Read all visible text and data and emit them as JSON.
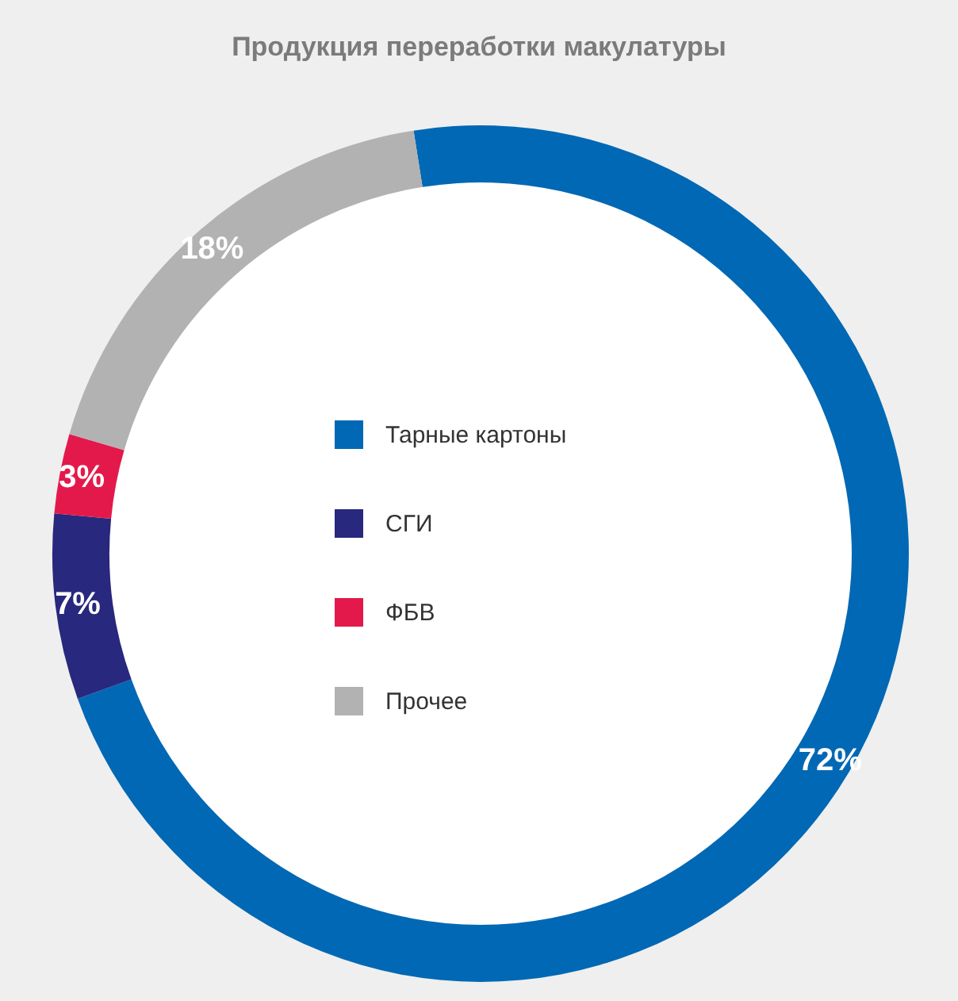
{
  "chart_data": {
    "type": "donut",
    "title": "Продукция переработки макулатуры",
    "categories": [
      "Тарные картоны",
      "СГИ",
      "ФБВ",
      "Прочее"
    ],
    "values": [
      72,
      7,
      3,
      18
    ],
    "value_labels": [
      "72%",
      "7%",
      "3%",
      "18%"
    ],
    "colors": [
      "#0068b4",
      "#28287e",
      "#e4194b",
      "#b2b2b2"
    ],
    "legend": "center"
  }
}
